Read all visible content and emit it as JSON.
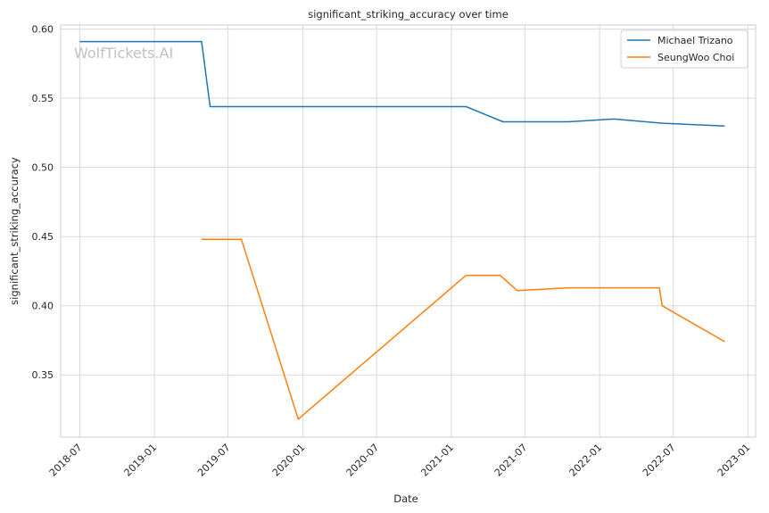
{
  "watermark": "WolfTickets.AI",
  "chart_data": {
    "type": "line",
    "title": "significant_striking_accuracy over time",
    "xlabel": "Date",
    "ylabel": "significant_striking_accuracy",
    "x_axis": {
      "type": "date",
      "range": [
        "2018-05-15",
        "2023-01-20"
      ],
      "ticks": [
        "2018-07",
        "2019-01",
        "2019-07",
        "2020-01",
        "2020-07",
        "2021-01",
        "2021-07",
        "2022-01",
        "2022-07",
        "2023-01"
      ]
    },
    "y_axis": {
      "range": [
        0.305,
        0.603
      ],
      "ticks": [
        0.35,
        0.4,
        0.45,
        0.5,
        0.55,
        0.6
      ],
      "tick_labels": [
        "0.35",
        "0.40",
        "0.45",
        "0.50",
        "0.55",
        "0.60"
      ]
    },
    "grid": true,
    "legend": {
      "position": "top-right"
    },
    "series": [
      {
        "name": "Michael Trizano",
        "color": "#1f77b4",
        "points": [
          {
            "x": "2018-07-01",
            "y": 0.591
          },
          {
            "x": "2019-04-27",
            "y": 0.591
          },
          {
            "x": "2019-05-18",
            "y": 0.544
          },
          {
            "x": "2021-02-06",
            "y": 0.544
          },
          {
            "x": "2021-05-08",
            "y": 0.533
          },
          {
            "x": "2021-10-16",
            "y": 0.533
          },
          {
            "x": "2022-02-05",
            "y": 0.535
          },
          {
            "x": "2022-06-04",
            "y": 0.532
          },
          {
            "x": "2022-11-05",
            "y": 0.53
          }
        ]
      },
      {
        "name": "SeungWoo Choi",
        "color": "#ff7f0e",
        "points": [
          {
            "x": "2019-04-27",
            "y": 0.448
          },
          {
            "x": "2019-08-03",
            "y": 0.448
          },
          {
            "x": "2019-12-21",
            "y": 0.318
          },
          {
            "x": "2021-02-06",
            "y": 0.422
          },
          {
            "x": "2021-05-01",
            "y": 0.422
          },
          {
            "x": "2021-06-12",
            "y": 0.411
          },
          {
            "x": "2021-10-16",
            "y": 0.413
          },
          {
            "x": "2022-05-28",
            "y": 0.413
          },
          {
            "x": "2022-06-04",
            "y": 0.4
          },
          {
            "x": "2022-11-05",
            "y": 0.374
          }
        ]
      }
    ]
  }
}
